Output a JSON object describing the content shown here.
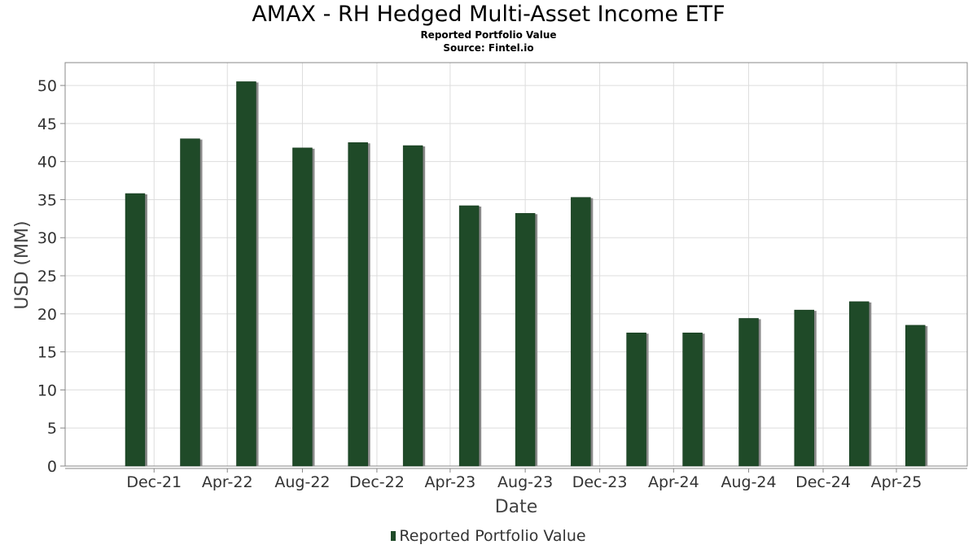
{
  "title": "AMAX - RH Hedged Multi-Asset Income ETF",
  "subtitle": "Reported Portfolio Value",
  "source": "Source: Fintel.io",
  "colors": {
    "bar": "#1f4a28",
    "bar_shadow": "#8a8a8a",
    "grid": "#dddddd",
    "axis": "#888888",
    "plot_bg": "#ffffff"
  },
  "chart_data": {
    "type": "bar",
    "title": "AMAX - RH Hedged Multi-Asset Income ETF",
    "subtitle": "Reported Portfolio Value",
    "xlabel": "Date",
    "ylabel": "USD (MM)",
    "ylim": [
      0,
      53
    ],
    "yticks": [
      0,
      5,
      10,
      15,
      20,
      25,
      30,
      35,
      40,
      45,
      50
    ],
    "xticks": [
      "Dec-21",
      "Apr-22",
      "Aug-22",
      "Dec-22",
      "Apr-23",
      "Aug-23",
      "Dec-23",
      "Apr-24",
      "Aug-24",
      "Dec-24",
      "Apr-25"
    ],
    "grid": true,
    "legend": {
      "position": "bottom",
      "entries": [
        "Reported Portfolio Value"
      ]
    },
    "series": [
      {
        "name": "Reported Portfolio Value",
        "x": [
          "2021-11-30",
          "2022-02-28",
          "2022-05-31",
          "2022-08-31",
          "2022-11-30",
          "2023-02-28",
          "2023-05-31",
          "2023-08-31",
          "2023-11-30",
          "2024-02-29",
          "2024-05-31",
          "2024-08-31",
          "2024-11-30",
          "2025-02-28",
          "2025-05-31"
        ],
        "values": [
          35.8,
          43.0,
          50.5,
          41.8,
          42.5,
          42.1,
          34.2,
          33.2,
          35.3,
          17.5,
          17.5,
          19.4,
          20.5,
          21.6,
          18.5
        ]
      }
    ]
  }
}
